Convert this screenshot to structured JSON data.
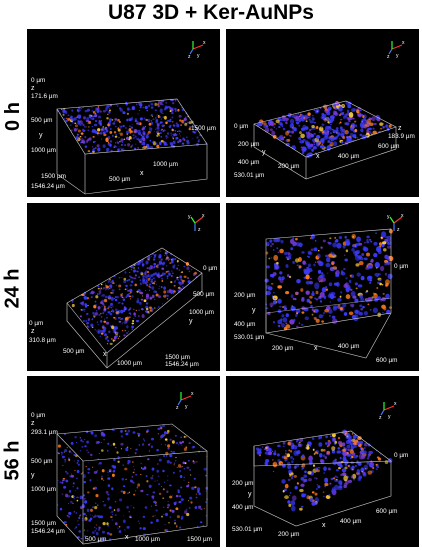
{
  "title": "U87 3D + Ker-AuNPs",
  "colors": {
    "cells": "#3a3aff",
    "particles": "#ff7a1a",
    "box": "#cfcfcf",
    "background": "#000000"
  },
  "rows": [
    {
      "time": "0 h",
      "left": {
        "z_top": "0 µm",
        "z_letter": "z",
        "z_val": "171.6 µm",
        "y_500": "500 µm",
        "y_letter": "y",
        "y_1000": "1000 µm",
        "y_1500": "1500 µm",
        "x_origin": "1546.24 µm",
        "x_500": "500 µm",
        "x_letter": "x",
        "x_1000": "1000 µm",
        "x_1500": "1500 µm"
      },
      "right": {
        "top_0": "0 µm",
        "y_200": "200 µm",
        "y_letter": "y",
        "y_400": "400 µm",
        "origin": "530.01 µm",
        "x_200": "200 µm",
        "x_letter": "x",
        "x_400": "400 µm",
        "x_600": "600 µm",
        "z_letter": "z",
        "z_val": "183.9 µm"
      }
    },
    {
      "time": "24 h",
      "left": {
        "z_0": "0 µm",
        "z_letter": "z",
        "z_val": "310.8 µm",
        "x_500": "500 µm",
        "x_letter": "x",
        "x_1000": "1000 µm",
        "y_0": "0 µm",
        "y_500": "500 µm",
        "y_1000": "1000 µm",
        "y_letter": "y",
        "y_1500": "1500 µm",
        "y_end": "1546.24 µm"
      },
      "right": {
        "top_0": "0 µm",
        "y_200": "200 µm",
        "y_letter": "y",
        "y_400": "400 µm",
        "origin": "530.01 µm",
        "x_200": "200 µm",
        "x_letter": "x",
        "x_400": "400 µm",
        "x_600": "600 µm"
      }
    },
    {
      "time": "56 h",
      "left": {
        "z_top": "0 µm",
        "z_letter": "z",
        "z_val": "293.1 µm",
        "y_500": "500 µm",
        "y_letter": "y",
        "y_1000": "1000 µm",
        "y_1500": "1500 µm",
        "x_origin": "1546.24 µm",
        "x_500": "500 µm",
        "x_letter": "x",
        "x_1000": "1000 µm",
        "x_1500": "1500 µm"
      },
      "right": {
        "top_0": "0 µm",
        "y_200": "200 µm",
        "y_letter": "y",
        "y_400": "400 µm",
        "origin": "530.01 µm",
        "x_200": "200 µm",
        "x_letter": "x",
        "x_400": "400 µm",
        "x_600": "600 µm"
      }
    }
  ],
  "axes_icon": {
    "x": "x",
    "y": "y",
    "z": "z"
  }
}
